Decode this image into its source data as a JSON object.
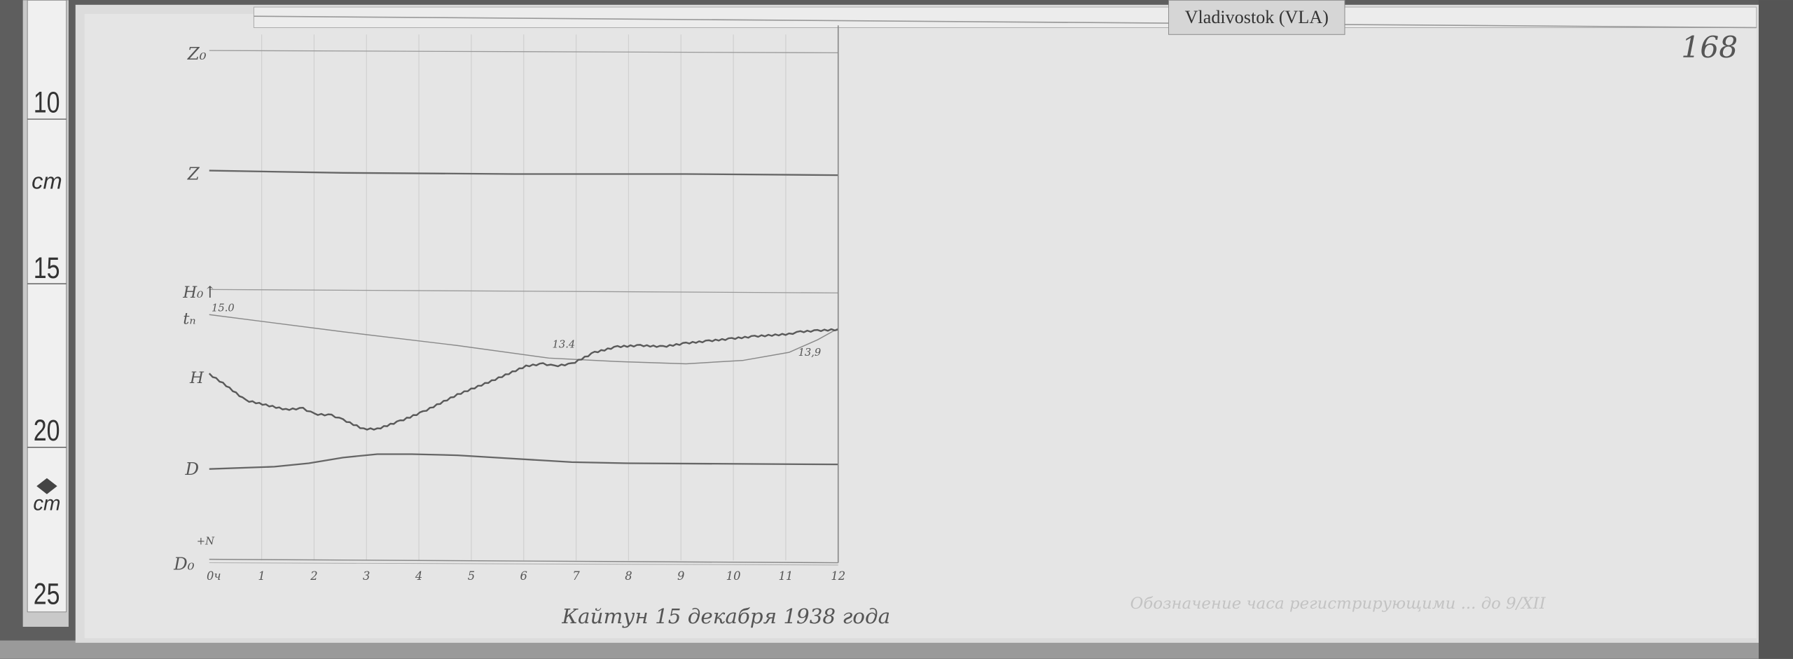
{
  "station_label": "Vladivostok (VLA)",
  "page_number": "168",
  "ruler": {
    "labels": [
      "10",
      "cm",
      "15",
      "20",
      "cm",
      "25"
    ]
  },
  "trace_labels": {
    "z0": "Z₀",
    "z": "Z",
    "h0": "H₀↑",
    "tn": "tₙ",
    "h": "H",
    "d": "D",
    "d0": "D₀",
    "d0_arrow": "+N"
  },
  "temperature_annotations": {
    "start": "15.0",
    "middle": "13.4",
    "end": "13,9"
  },
  "hour_labels": [
    "0ч",
    "1",
    "2",
    "3",
    "4",
    "5",
    "6",
    "7",
    "8",
    "9",
    "10",
    "11",
    "12"
  ],
  "caption": "Кайтун 15 декабря 1938 года",
  "faint_note": "Обозначение часа регистрирующими ... до 9/XII",
  "colors": {
    "paper": "#e4e4e4",
    "ink": "#555555",
    "background": "#5e5e5e"
  }
}
